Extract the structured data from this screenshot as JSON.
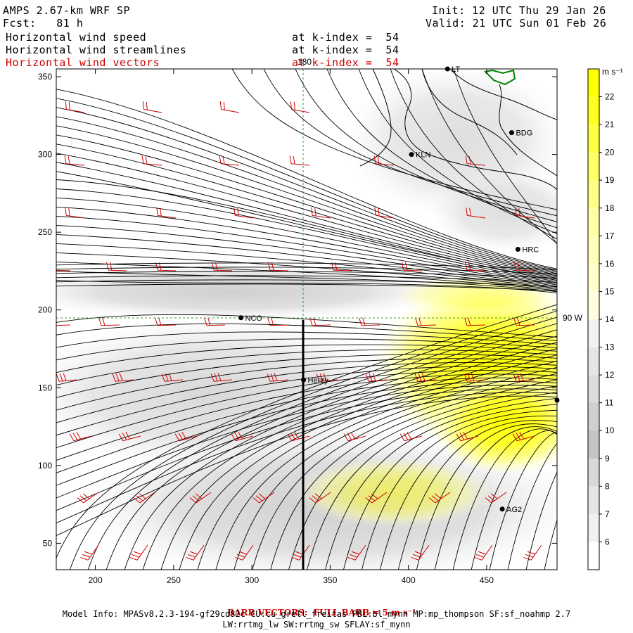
{
  "header": {
    "model_title": "AMPS 2.67-km WRF SP",
    "forecast": "Fcst:   81 h",
    "init": "Init: 12 UTC Thu 29 Jan 26",
    "valid": "Valid: 21 UTC Sun 01 Feb 26",
    "fields": [
      {
        "name": "Horizontal wind speed",
        "level": "at k-index =  54",
        "color": "#000000"
      },
      {
        "name": "Horizontal wind streamlines",
        "level": "at k-index =  54",
        "color": "#000000"
      },
      {
        "name": "Horizontal wind vectors",
        "level": "at k-index =  54",
        "color": "#d00000"
      }
    ]
  },
  "map": {
    "meridian_label": "180",
    "parallel_label": "90 W",
    "stations": [
      {
        "name": "LT",
        "x": 425,
        "y": 355
      },
      {
        "name": "BDG",
        "x": 466,
        "y": 314
      },
      {
        "name": "KLN",
        "x": 402,
        "y": 300
      },
      {
        "name": "HRC",
        "x": 470,
        "y": 239
      },
      {
        "name": "NCO",
        "x": 293,
        "y": 195
      },
      {
        "name": "Henry",
        "x": 333,
        "y": 155
      },
      {
        "name": "",
        "x": 495,
        "y": 142
      },
      {
        "name": "AG2",
        "x": 460,
        "y": 72
      }
    ]
  },
  "colorbar": {
    "unit": "m s⁻¹",
    "labels": [
      "22",
      "21",
      "20",
      "19",
      "18",
      "17",
      "16",
      "15",
      "14",
      "13",
      "12",
      "11",
      "10",
      "9",
      "8",
      "7",
      "6"
    ],
    "colors": [
      "#ffff00",
      "#ffff22",
      "#ffff44",
      "#ffff66",
      "#ffff88",
      "#ffffaa",
      "#ffffbb",
      "#ffffcc",
      "#ffffe0",
      "#f2f2f2",
      "#e6e6e6",
      "#dcdcdc",
      "#d0d0d0",
      "#c4c4c4",
      "#d8d8d8",
      "#e6e6e6",
      "#f0f0f0",
      "#ffffff"
    ]
  },
  "chart_data": {
    "type": "map",
    "x_ticks": [
      200,
      250,
      300,
      350,
      400,
      450
    ],
    "y_ticks": [
      50,
      100,
      150,
      200,
      250,
      300,
      350
    ],
    "xlim": [
      175,
      495
    ],
    "ylim": [
      33,
      355
    ]
  },
  "footer": {
    "barb_note": "BARB VECTORS:  FULL BARB = 5 m s⁻¹",
    "model_info": "Model Info: MPASv8.2.3-194-gf29cd82c CU:cu_grell_freitas PBL:bl_mynn MP:mp_thompson SF:sf_noahmp 2.7",
    "model_info2": "LW:rrtmg_lw SW:rrtmg_sw SFLAY:sf_mynn"
  }
}
